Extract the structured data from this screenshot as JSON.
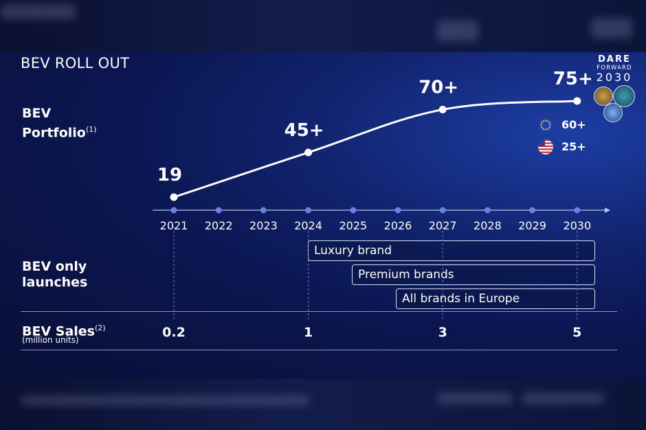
{
  "slide": {
    "title": "BEV ROLL OUT"
  },
  "logo": {
    "line1": "DARE",
    "line2": "FORWARD",
    "line3": "2030"
  },
  "rows": {
    "portfolio": {
      "label_line1": "BEV",
      "label_line2": "Portfolio",
      "footnote": "(1)"
    },
    "launches": {
      "label_line1": "BEV only",
      "label_line2": "launches"
    },
    "sales": {
      "label": "BEV Sales",
      "footnote": "(2)",
      "unit": "(million units)"
    }
  },
  "legend": [
    {
      "region": "Europe",
      "value": "60+",
      "icon": "eu-flag-icon"
    },
    {
      "region": "United States",
      "value": "25+",
      "icon": "us-flag-icon"
    }
  ],
  "launch_bars": [
    {
      "label": "Luxury brand",
      "start_year": 2024
    },
    {
      "label": "Premium brands",
      "start_year": 2025
    },
    {
      "label": "All brands in Europe",
      "start_year": 2026
    }
  ],
  "colors": {
    "curve": "#ffffff",
    "timeline_dot": "#6d7fe0",
    "axis": "#b9c2e6",
    "background": "#0e1d5c",
    "flag_blue": "#1f3fb0",
    "flag_red": "#c8323a"
  },
  "chart_data": {
    "type": "line",
    "x": [
      2021,
      2022,
      2023,
      2024,
      2025,
      2026,
      2027,
      2028,
      2029,
      2030
    ],
    "portfolio_points": [
      {
        "x": 2021,
        "y": 19,
        "label": "19"
      },
      {
        "x": 2024,
        "y": 45,
        "label": "45+"
      },
      {
        "x": 2027,
        "y": 70,
        "label": "70+"
      },
      {
        "x": 2030,
        "y": 75,
        "label": "75+"
      }
    ],
    "sales": [
      {
        "x": 2021,
        "value": 0.2,
        "label": "0.2"
      },
      {
        "x": 2024,
        "value": 1,
        "label": "1"
      },
      {
        "x": 2027,
        "value": 3,
        "label": "3"
      },
      {
        "x": 2030,
        "value": 5,
        "label": "5"
      }
    ],
    "xlabel": "",
    "ylabel": "",
    "grid": false
  }
}
